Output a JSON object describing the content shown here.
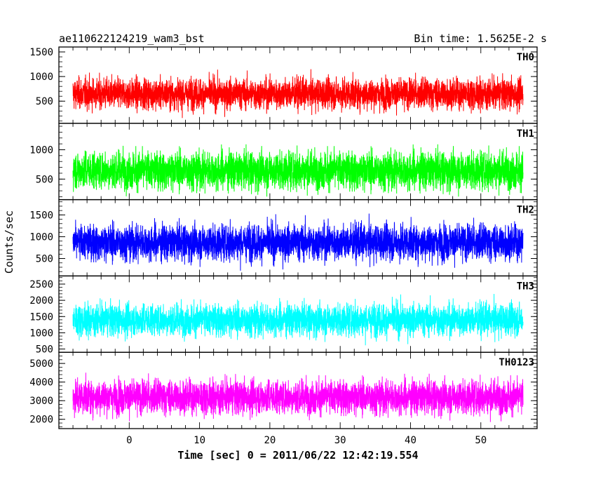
{
  "header": {
    "title": "ae110622124219_wam3_bst",
    "bin_time": "Bin time: 1.5625E-2 s"
  },
  "ylabel": "Counts/sec",
  "xlabel": "Time [sec] 0 = 2011/06/22 12:42:19.554",
  "chart_data": [
    {
      "type": "line",
      "name": "TH0",
      "color": "#ff0000",
      "x_range": [
        -8.0,
        56.0
      ],
      "xlim": [
        -10,
        58
      ],
      "ylim": [
        50,
        1600
      ],
      "yticks": [
        500,
        1000,
        1500
      ],
      "mean": 650,
      "spread": 220,
      "min_typical": 150,
      "max_typical": 1600
    },
    {
      "type": "line",
      "name": "TH1",
      "color": "#00ff00",
      "x_range": [
        -8.0,
        56.0
      ],
      "xlim": [
        -10,
        58
      ],
      "ylim": [
        150,
        1450
      ],
      "yticks": [
        500,
        1000
      ],
      "mean": 650,
      "spread": 230,
      "min_typical": 200,
      "max_typical": 1450
    },
    {
      "type": "line",
      "name": "TH2",
      "color": "#0000ff",
      "x_range": [
        -8.0,
        56.0
      ],
      "xlim": [
        -10,
        58
      ],
      "ylim": [
        100,
        1850
      ],
      "yticks": [
        500,
        1000,
        1500
      ],
      "mean": 870,
      "spread": 290,
      "min_typical": 200,
      "max_typical": 1850
    },
    {
      "type": "line",
      "name": "TH3",
      "color": "#00ffff",
      "x_range": [
        -8.0,
        56.0
      ],
      "xlim": [
        -10,
        58
      ],
      "ylim": [
        400,
        2750
      ],
      "yticks": [
        500,
        1000,
        1500,
        2000,
        2500
      ],
      "mean": 1400,
      "spread": 350,
      "min_typical": 500,
      "max_typical": 2750
    },
    {
      "type": "line",
      "name": "TH0123",
      "color": "#ff00ff",
      "x_range": [
        -8.0,
        56.0
      ],
      "xlim": [
        -10,
        58
      ],
      "ylim": [
        1500,
        5600
      ],
      "yticks": [
        2000,
        3000,
        4000,
        5000
      ],
      "mean": 3200,
      "spread": 650,
      "min_typical": 1800,
      "max_typical": 5600
    }
  ],
  "xticks": [
    0,
    10,
    20,
    30,
    40,
    50
  ]
}
